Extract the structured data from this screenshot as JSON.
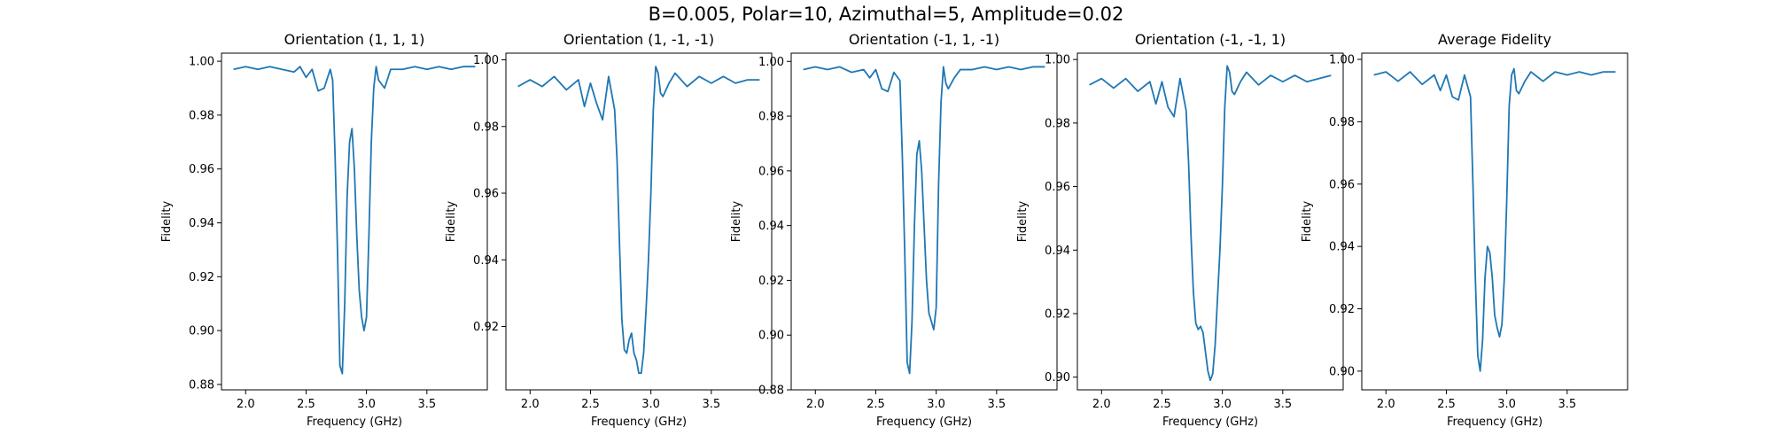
{
  "figure": {
    "title": "B=0.005, Polar=10, Azimuthal=5, Amplitude=0.02",
    "line_color": "#1f77b4"
  },
  "chart_data": [
    {
      "type": "line",
      "title": "Orientation (1, 1, 1)",
      "xlabel": "Frequency (GHz)",
      "ylabel": "Fidelity",
      "xlim": [
        1.8,
        4.0
      ],
      "ylim": [
        0.878,
        1.003
      ],
      "xticks": [
        "2.0",
        "2.5",
        "3.0",
        "3.5"
      ],
      "yticks": [
        "0.88",
        "0.90",
        "0.92",
        "0.94",
        "0.96",
        "0.98",
        "1.00"
      ],
      "grid": false,
      "x": [
        1.9,
        2.0,
        2.1,
        2.2,
        2.3,
        2.4,
        2.45,
        2.5,
        2.55,
        2.6,
        2.65,
        2.7,
        2.72,
        2.74,
        2.76,
        2.78,
        2.8,
        2.82,
        2.84,
        2.86,
        2.88,
        2.9,
        2.92,
        2.94,
        2.96,
        2.98,
        3.0,
        3.02,
        3.04,
        3.06,
        3.08,
        3.1,
        3.15,
        3.2,
        3.3,
        3.4,
        3.5,
        3.6,
        3.7,
        3.8,
        3.9
      ],
      "y": [
        0.997,
        0.998,
        0.997,
        0.998,
        0.997,
        0.996,
        0.998,
        0.994,
        0.997,
        0.989,
        0.99,
        0.997,
        0.993,
        0.965,
        0.93,
        0.887,
        0.884,
        0.91,
        0.95,
        0.97,
        0.975,
        0.96,
        0.935,
        0.915,
        0.905,
        0.9,
        0.905,
        0.935,
        0.97,
        0.99,
        0.998,
        0.993,
        0.99,
        0.997,
        0.997,
        0.998,
        0.997,
        0.998,
        0.997,
        0.998,
        0.998
      ]
    },
    {
      "type": "line",
      "title": "Orientation (1, -1, -1)",
      "xlabel": "Frequency (GHz)",
      "ylabel": "Fidelity",
      "xlim": [
        1.8,
        4.0
      ],
      "ylim": [
        0.901,
        1.002
      ],
      "xticks": [
        "2.0",
        "2.5",
        "3.0",
        "3.5"
      ],
      "yticks": [
        "0.92",
        "0.94",
        "0.96",
        "0.98",
        "1.00"
      ],
      "grid": false,
      "x": [
        1.9,
        2.0,
        2.1,
        2.2,
        2.3,
        2.4,
        2.45,
        2.5,
        2.55,
        2.6,
        2.65,
        2.7,
        2.72,
        2.74,
        2.76,
        2.78,
        2.8,
        2.82,
        2.84,
        2.86,
        2.88,
        2.9,
        2.92,
        2.94,
        2.96,
        2.98,
        3.0,
        3.02,
        3.04,
        3.06,
        3.08,
        3.1,
        3.15,
        3.2,
        3.3,
        3.4,
        3.5,
        3.6,
        3.7,
        3.8,
        3.9
      ],
      "y": [
        0.992,
        0.994,
        0.992,
        0.995,
        0.991,
        0.994,
        0.986,
        0.993,
        0.987,
        0.982,
        0.995,
        0.985,
        0.97,
        0.945,
        0.922,
        0.913,
        0.912,
        0.916,
        0.918,
        0.912,
        0.91,
        0.906,
        0.906,
        0.912,
        0.925,
        0.94,
        0.96,
        0.985,
        0.998,
        0.996,
        0.99,
        0.989,
        0.993,
        0.996,
        0.992,
        0.995,
        0.993,
        0.995,
        0.993,
        0.994,
        0.994
      ]
    },
    {
      "type": "line",
      "title": "Orientation (-1, 1, -1)",
      "xlabel": "Frequency (GHz)",
      "ylabel": "Fidelity",
      "xlim": [
        1.8,
        4.0
      ],
      "ylim": [
        0.88,
        1.003
      ],
      "xticks": [
        "2.0",
        "2.5",
        "3.0",
        "3.5"
      ],
      "yticks": [
        "0.88",
        "0.90",
        "0.92",
        "0.94",
        "0.96",
        "0.98",
        "1.00"
      ],
      "grid": false,
      "x": [
        1.9,
        2.0,
        2.1,
        2.2,
        2.3,
        2.4,
        2.45,
        2.5,
        2.55,
        2.6,
        2.65,
        2.7,
        2.72,
        2.74,
        2.76,
        2.78,
        2.8,
        2.82,
        2.84,
        2.86,
        2.88,
        2.9,
        2.92,
        2.94,
        2.96,
        2.98,
        3.0,
        3.02,
        3.04,
        3.06,
        3.08,
        3.1,
        3.15,
        3.2,
        3.3,
        3.4,
        3.5,
        3.6,
        3.7,
        3.8,
        3.9
      ],
      "y": [
        0.997,
        0.998,
        0.997,
        0.998,
        0.996,
        0.997,
        0.994,
        0.997,
        0.99,
        0.989,
        0.996,
        0.993,
        0.965,
        0.93,
        0.89,
        0.886,
        0.905,
        0.94,
        0.966,
        0.971,
        0.96,
        0.94,
        0.92,
        0.908,
        0.905,
        0.902,
        0.91,
        0.955,
        0.985,
        0.998,
        0.992,
        0.99,
        0.994,
        0.997,
        0.997,
        0.998,
        0.997,
        0.998,
        0.997,
        0.998,
        0.998
      ]
    },
    {
      "type": "line",
      "title": "Orientation (-1, -1, 1)",
      "xlabel": "Frequency (GHz)",
      "ylabel": "Fidelity",
      "xlim": [
        1.8,
        4.0
      ],
      "ylim": [
        0.896,
        1.002
      ],
      "xticks": [
        "2.0",
        "2.5",
        "3.0",
        "3.5"
      ],
      "yticks": [
        "0.90",
        "0.92",
        "0.94",
        "0.96",
        "0.98",
        "1.00"
      ],
      "grid": false,
      "x": [
        1.9,
        2.0,
        2.1,
        2.2,
        2.3,
        2.4,
        2.45,
        2.5,
        2.55,
        2.6,
        2.65,
        2.7,
        2.72,
        2.74,
        2.76,
        2.78,
        2.8,
        2.82,
        2.84,
        2.86,
        2.88,
        2.9,
        2.92,
        2.94,
        2.96,
        2.98,
        3.0,
        3.02,
        3.04,
        3.06,
        3.08,
        3.1,
        3.15,
        3.2,
        3.3,
        3.4,
        3.5,
        3.6,
        3.7,
        3.8,
        3.9
      ],
      "y": [
        0.992,
        0.994,
        0.991,
        0.994,
        0.99,
        0.993,
        0.986,
        0.993,
        0.985,
        0.982,
        0.994,
        0.984,
        0.968,
        0.945,
        0.927,
        0.917,
        0.915,
        0.916,
        0.914,
        0.908,
        0.902,
        0.899,
        0.901,
        0.91,
        0.925,
        0.94,
        0.96,
        0.985,
        0.998,
        0.996,
        0.99,
        0.989,
        0.993,
        0.996,
        0.992,
        0.995,
        0.993,
        0.995,
        0.993,
        0.994,
        0.995
      ]
    },
    {
      "type": "line",
      "title": "Average Fidelity",
      "xlabel": "Frequency (GHz)",
      "ylabel": "Fidelity",
      "xlim": [
        1.8,
        4.0
      ],
      "ylim": [
        0.894,
        1.002
      ],
      "xticks": [
        "2.0",
        "2.5",
        "3.0",
        "3.5"
      ],
      "yticks": [
        "0.90",
        "0.92",
        "0.94",
        "0.96",
        "0.98",
        "1.00"
      ],
      "grid": false,
      "x": [
        1.9,
        2.0,
        2.1,
        2.2,
        2.3,
        2.4,
        2.45,
        2.5,
        2.55,
        2.6,
        2.65,
        2.7,
        2.72,
        2.74,
        2.76,
        2.78,
        2.8,
        2.82,
        2.84,
        2.86,
        2.88,
        2.9,
        2.92,
        2.94,
        2.96,
        2.98,
        3.0,
        3.02,
        3.04,
        3.06,
        3.08,
        3.1,
        3.15,
        3.2,
        3.3,
        3.4,
        3.5,
        3.6,
        3.7,
        3.8,
        3.9
      ],
      "y": [
        0.995,
        0.996,
        0.993,
        0.996,
        0.992,
        0.995,
        0.99,
        0.995,
        0.988,
        0.987,
        0.995,
        0.988,
        0.96,
        0.93,
        0.905,
        0.9,
        0.91,
        0.93,
        0.94,
        0.938,
        0.93,
        0.918,
        0.914,
        0.911,
        0.915,
        0.93,
        0.955,
        0.985,
        0.995,
        0.997,
        0.99,
        0.989,
        0.993,
        0.996,
        0.993,
        0.996,
        0.995,
        0.996,
        0.995,
        0.996,
        0.996
      ]
    }
  ]
}
